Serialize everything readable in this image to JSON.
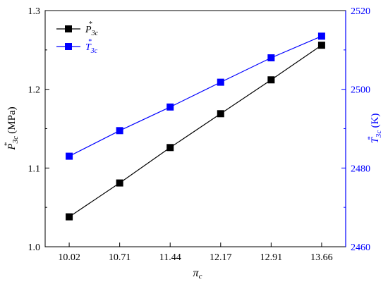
{
  "chart_data": {
    "type": "line",
    "x": [
      10.02,
      10.71,
      11.44,
      12.17,
      12.91,
      13.66
    ],
    "x_tick_labels": [
      "10.02",
      "10.71",
      "11.44",
      "12.17",
      "12.91",
      "13.66"
    ],
    "xlabel": {
      "main": "π",
      "sub": "c"
    },
    "series": [
      {
        "name": {
          "main": "P",
          "sup": "*",
          "sub": "3c"
        },
        "axis": "left",
        "color": "#000000",
        "marker": "square",
        "values": [
          1.038,
          1.081,
          1.126,
          1.169,
          1.212,
          1.256
        ]
      },
      {
        "name": {
          "main": "T",
          "sup": "*",
          "sub": "3c"
        },
        "axis": "right",
        "color": "#0000FF",
        "marker": "square",
        "values": [
          2483.0,
          2489.5,
          2495.5,
          2501.8,
          2508.0,
          2513.5
        ]
      }
    ],
    "y_left": {
      "label": {
        "main": "P",
        "sup": "*",
        "sub": "3c",
        "unit": " (MPa)"
      },
      "ylim": [
        1.0,
        1.3
      ],
      "ticks": [
        "1.0",
        "1.1",
        "1.2",
        "1.3"
      ],
      "color": "#000000"
    },
    "y_right": {
      "label": {
        "main": "T",
        "sup": "*",
        "sub": "3c",
        "unit": " (K)"
      },
      "ylim": [
        2460,
        2520
      ],
      "ticks": [
        "2460",
        "2480",
        "2500",
        "2520"
      ],
      "color": "#0000FF"
    },
    "grid": false,
    "legend_position": "top-left"
  }
}
